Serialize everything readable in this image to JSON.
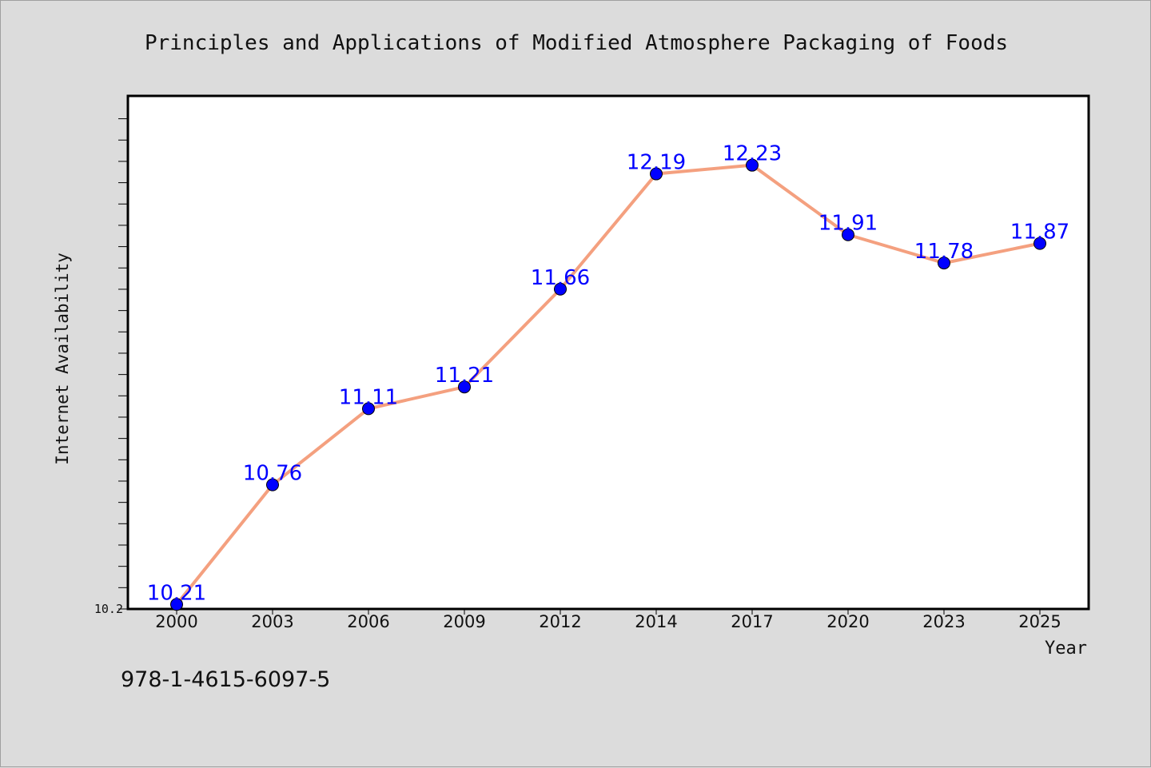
{
  "chart_data": {
    "type": "line",
    "title": "Principles and Applications of Modified Atmosphere Packaging of Foods",
    "xlabel": "Year",
    "ylabel": "Internet Availability",
    "categories": [
      "2000",
      "2003",
      "2006",
      "2009",
      "2012",
      "2014",
      "2017",
      "2020",
      "2023",
      "2025"
    ],
    "series": [
      {
        "values": [
          10.21,
          10.76,
          11.11,
          11.21,
          11.66,
          12.19,
          12.23,
          11.91,
          11.78,
          11.87
        ]
      }
    ],
    "data_labels": [
      "10.21",
      "10.76",
      "11.11",
      "11.21",
      "11.66",
      "12.19",
      "12.23",
      "11.91",
      "11.78",
      "11.87"
    ],
    "ylim": [
      10.2,
      12.6
    ],
    "y_tick_label": "10.2",
    "grid": false,
    "line_color": "#f4a07f",
    "marker_color": "#0000ff",
    "label_color": "#0000ff"
  },
  "footer": {
    "isbn": "978-1-4615-6097-5"
  }
}
